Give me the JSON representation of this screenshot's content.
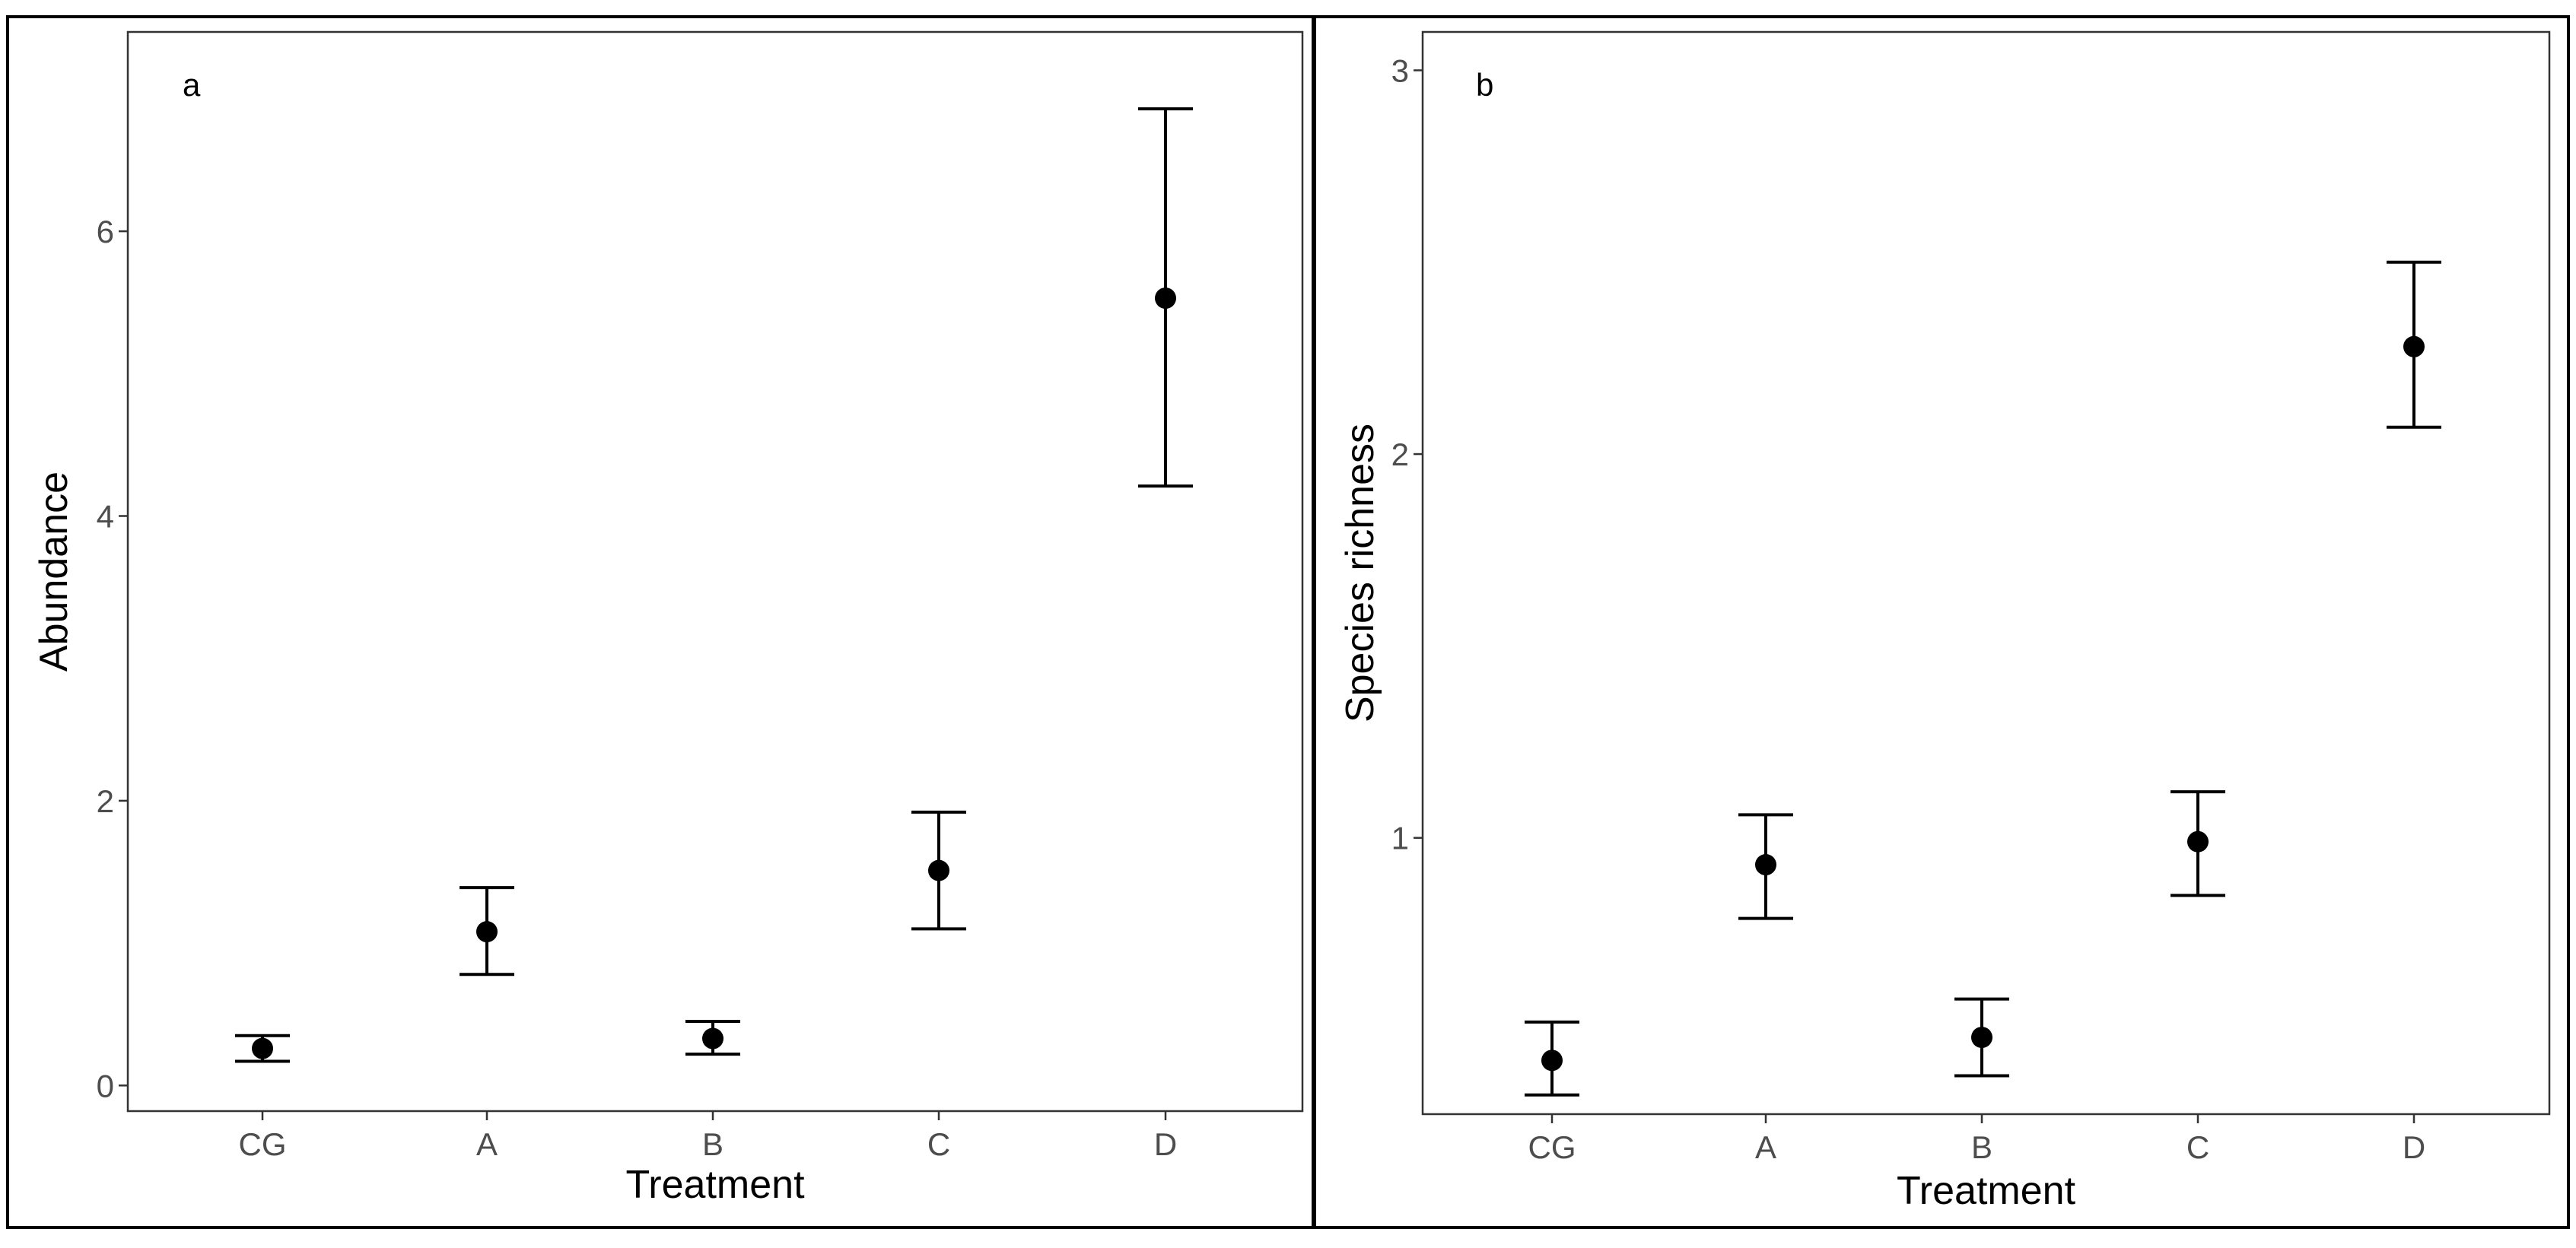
{
  "chart_data": [
    {
      "type": "scatter",
      "panel_label": "a",
      "xlabel": "Treatment",
      "ylabel": "Abundance",
      "categories": [
        "CG",
        "A",
        "B",
        "C",
        "D"
      ],
      "values": [
        0.26,
        1.08,
        0.33,
        1.51,
        5.53
      ],
      "error_lower": [
        0.17,
        0.78,
        0.22,
        1.1,
        4.21
      ],
      "error_upper": [
        0.35,
        1.39,
        0.45,
        1.92,
        6.86
      ],
      "ylim": [
        -0.18,
        7.4
      ],
      "yticks": [
        0,
        2,
        4,
        6
      ],
      "ytick_labels": [
        "0",
        "2",
        "4",
        "6"
      ],
      "grid": false,
      "marker_color": "#000000"
    },
    {
      "type": "scatter",
      "panel_label": "b",
      "xlabel": "Treatment",
      "ylabel": "Species richness",
      "categories": [
        "CG",
        "A",
        "B",
        "C",
        "D"
      ],
      "values": [
        0.42,
        0.93,
        0.48,
        0.99,
        2.28
      ],
      "error_lower": [
        0.33,
        0.79,
        0.38,
        0.85,
        2.07
      ],
      "error_upper": [
        0.52,
        1.06,
        0.58,
        1.12,
        2.5
      ],
      "ylim": [
        0.28,
        3.1
      ],
      "yticks": [
        1,
        2,
        3
      ],
      "ytick_labels": [
        "1",
        "2",
        "3"
      ],
      "grid": false,
      "marker_color": "#000000"
    }
  ]
}
